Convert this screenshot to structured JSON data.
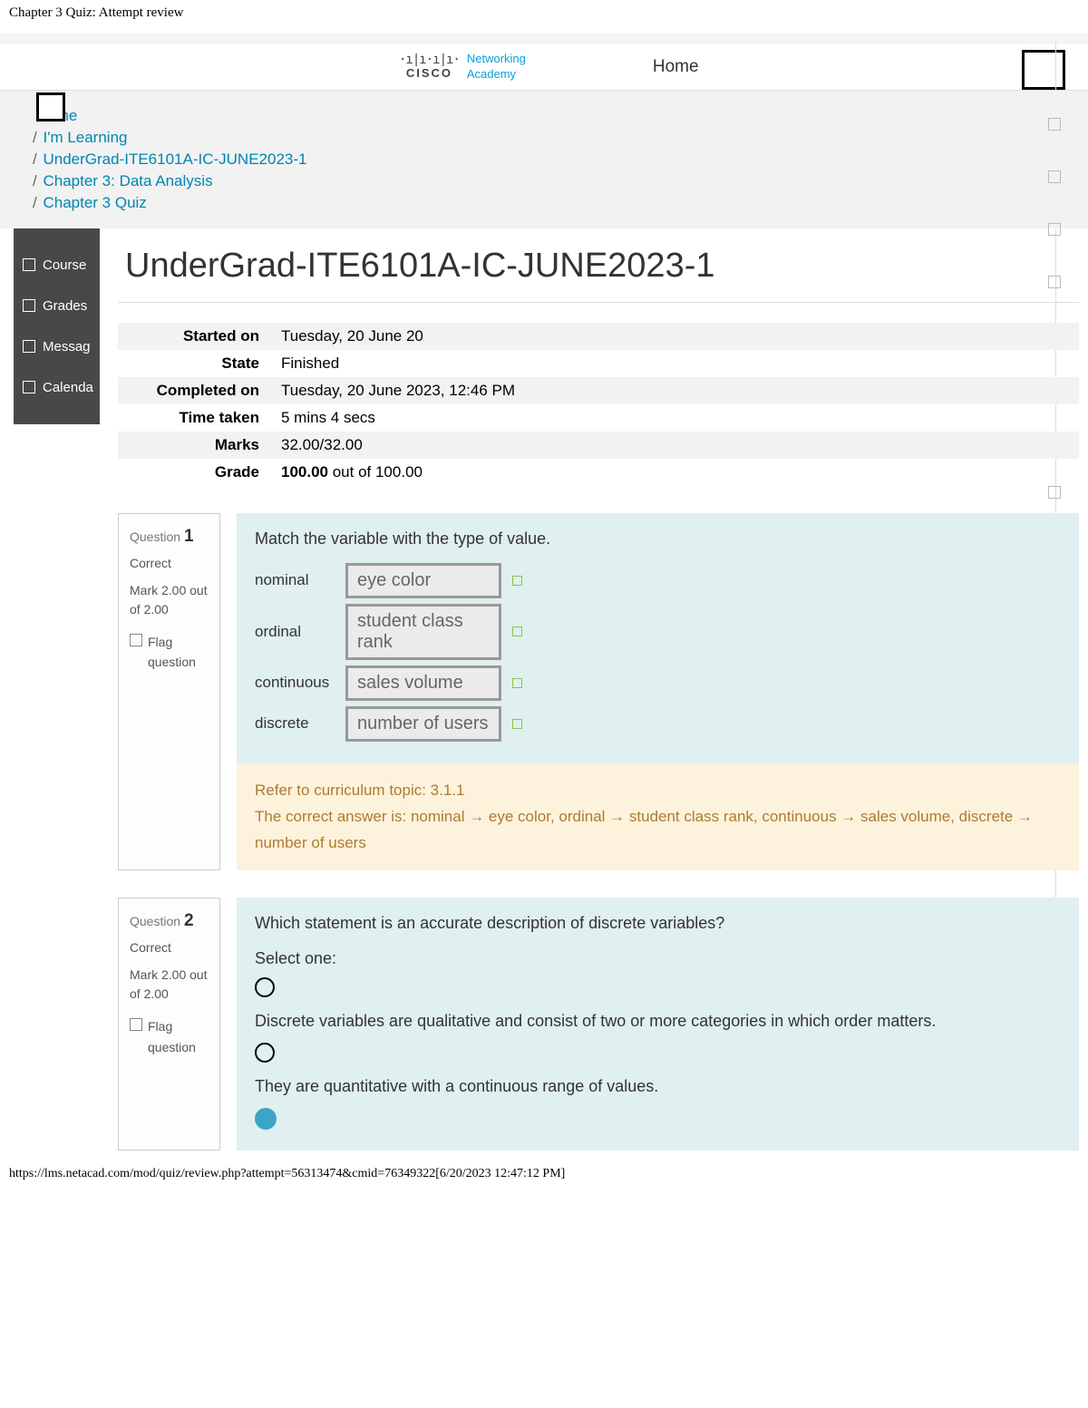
{
  "page_header": "Chapter 3 Quiz: Attempt review",
  "logo": {
    "brand": "CISCO",
    "tagline1": "Networking",
    "tagline2": "Academy"
  },
  "nav_home": "Home",
  "breadcrumbs": [
    {
      "label": "Home"
    },
    {
      "label": "I'm Learning"
    },
    {
      "label": "UnderGrad-ITE6101A-IC-JUNE2023-1"
    },
    {
      "label": "Chapter 3: Data Analysis"
    },
    {
      "label": "Chapter 3 Quiz"
    }
  ],
  "sidebar": [
    {
      "label": "Course"
    },
    {
      "label": "Grades"
    },
    {
      "label": "Messag"
    },
    {
      "label": "Calenda"
    }
  ],
  "course_title": "UnderGrad-ITE6101A-IC-JUNE2023-1",
  "summary": {
    "started_on_label": "Started on",
    "started_on": "Tuesday, 20 June 20",
    "state_label": "State",
    "state": "Finished",
    "completed_on_label": "Completed on",
    "completed_on": "Tuesday, 20 June 2023, 12:46 PM",
    "time_taken_label": "Time taken",
    "time_taken": "5 mins 4 secs",
    "marks_label": "Marks",
    "marks": "32.00/32.00",
    "grade_label": "Grade",
    "grade_bold": "100.00",
    "grade_rest": " out of 100.00"
  },
  "q1": {
    "number": "1",
    "question_word": "Question",
    "status": "Correct",
    "mark": "Mark 2.00 out of 2.00",
    "flag": "Flag question",
    "prompt": "Match the variable with the type of value.",
    "matches": [
      {
        "label": "nominal",
        "value": "eye color"
      },
      {
        "label": "ordinal",
        "value": "student class rank"
      },
      {
        "label": "continuous",
        "value": "sales volume"
      },
      {
        "label": "discrete",
        "value": "number of users"
      }
    ],
    "feedback_topic": "Refer to curriculum topic: 3.1.1",
    "feedback_answer": "The correct answer is: nominal → eye color, ordinal → student class rank, continuous → sales volume, discrete → number of users"
  },
  "q2": {
    "number": "2",
    "question_word": "Question",
    "status": "Correct",
    "mark": "Mark 2.00 out of 2.00",
    "flag": "Flag question",
    "prompt": "Which statement is an accurate description of discrete variables?",
    "select_one": "Select one:",
    "options": [
      "Discrete variables are qualitative and consist of two or more categories in which order matters.",
      "They are quantitative with a continuous range of values."
    ]
  },
  "footer_url": "https://lms.netacad.com/mod/quiz/review.php?attempt=56313474&cmid=76349322[6/20/2023 12:47:12 PM]"
}
